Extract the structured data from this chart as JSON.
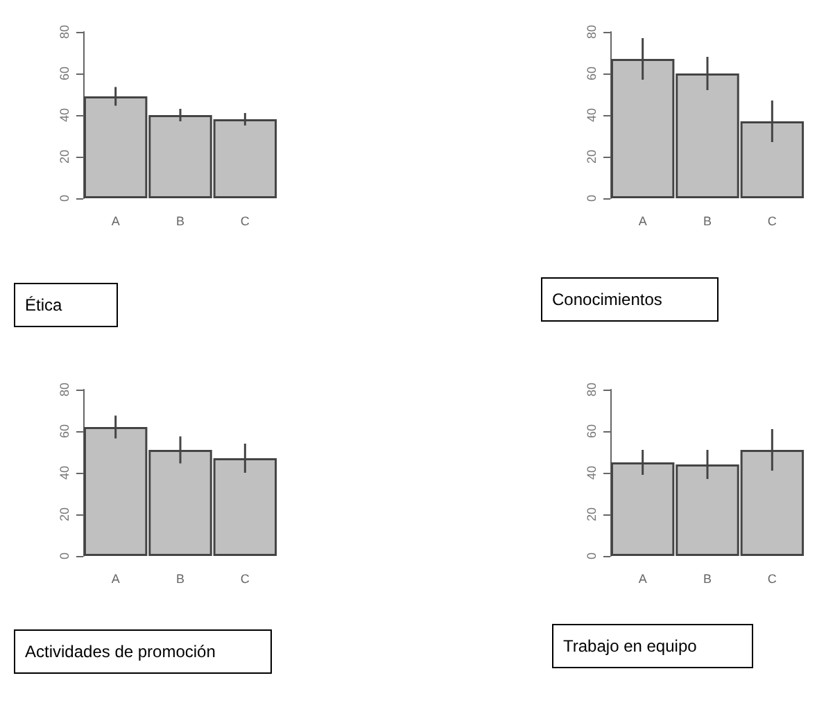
{
  "chart_data": [
    {
      "type": "bar",
      "title": "Ética",
      "categories": [
        "A",
        "B",
        "C"
      ],
      "values": [
        49,
        40,
        38
      ],
      "errors": [
        4.5,
        3,
        3
      ],
      "color": "#c0c0c0",
      "ylim": [
        0,
        80
      ],
      "yticks": [
        0,
        20,
        40,
        60,
        80
      ],
      "grid": false
    },
    {
      "type": "bar",
      "title": "Conocimientos",
      "categories": [
        "A",
        "B",
        "C"
      ],
      "values": [
        67,
        60,
        37
      ],
      "errors": [
        10,
        8,
        10
      ],
      "color": "#c0c0c0",
      "ylim": [
        0,
        80
      ],
      "yticks": [
        0,
        20,
        40,
        60,
        80
      ],
      "grid": false
    },
    {
      "type": "bar",
      "title": "Actividades de promoción",
      "categories": [
        "A",
        "B",
        "C"
      ],
      "values": [
        62,
        51,
        47
      ],
      "errors": [
        5.5,
        6.5,
        7
      ],
      "color": "#c0c0c0",
      "ylim": [
        0,
        80
      ],
      "yticks": [
        0,
        20,
        40,
        60,
        80
      ],
      "grid": false
    },
    {
      "type": "bar",
      "title": "Trabajo en equipo",
      "categories": [
        "A",
        "B",
        "C"
      ],
      "values": [
        45,
        44,
        51
      ],
      "errors": [
        6,
        7,
        10
      ],
      "color": "#c0c0c0",
      "ylim": [
        0,
        80
      ],
      "yticks": [
        0,
        20,
        40,
        60,
        80
      ],
      "grid": false
    }
  ]
}
